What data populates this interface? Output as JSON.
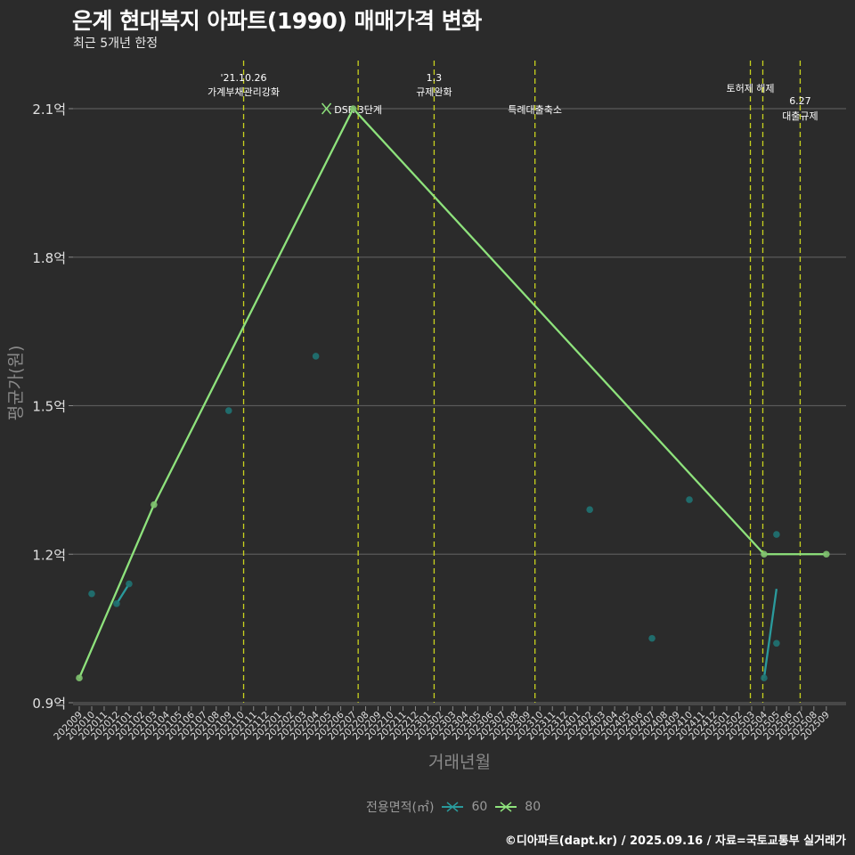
{
  "title": "은계 현대복지 아파트(1990) 매매가격 변화",
  "subtitle": "최근 5개년 한정",
  "caption": "©디아파트(dapt.kr) / 2025.09.16 / 자료=국토교통부 실거래가",
  "colors": {
    "background": "#2b2b2b",
    "series60": "#2a9a9c",
    "series80": "#8ee27c",
    "event_line": "#c8d21e",
    "grid": "#5a5a5a"
  },
  "chart_data": {
    "type": "line",
    "title": "은계 현대복지 아파트(1990) 매매가격 변화",
    "xlabel": "거래년월",
    "ylabel": "평균가(원)",
    "ylim": [
      0.9,
      2.1
    ],
    "yticks": [
      0.9,
      1.2,
      1.5,
      1.8,
      2.1
    ],
    "ytick_labels": [
      "0.9억",
      "1.2억",
      "1.5억",
      "1.8억",
      "2.1억"
    ],
    "categories": [
      "202009",
      "202010",
      "202011",
      "202012",
      "202101",
      "202102",
      "202103",
      "202104",
      "202105",
      "202106",
      "202107",
      "202108",
      "202109",
      "202110",
      "202111",
      "202112",
      "202201",
      "202202",
      "202203",
      "202204",
      "202205",
      "202206",
      "202207",
      "202208",
      "202209",
      "202210",
      "202211",
      "202212",
      "202301",
      "202302",
      "202303",
      "202304",
      "202305",
      "202306",
      "202307",
      "202308",
      "202309",
      "202310",
      "202311",
      "202312",
      "202401",
      "202402",
      "202403",
      "202404",
      "202405",
      "202406",
      "202407",
      "202408",
      "202409",
      "202410",
      "202411",
      "202412",
      "202501",
      "202502",
      "202503",
      "202504",
      "202505",
      "202506",
      "202507",
      "202508",
      "202509"
    ],
    "legend_title": "전용면적(㎡)",
    "legend_position": "bottom",
    "grid": true,
    "series": [
      {
        "name": "60",
        "line": [
          {
            "x": "202012",
            "y": 1.1
          },
          {
            "x": "202101",
            "y": 1.14
          },
          null,
          {
            "x": "202504",
            "y": 0.95
          },
          {
            "x": "202505",
            "y": 1.13
          }
        ],
        "points": [
          {
            "x": "202010",
            "y": 1.12
          },
          {
            "x": "202012",
            "y": 1.1
          },
          {
            "x": "202101",
            "y": 1.14
          },
          {
            "x": "202109",
            "y": 1.49
          },
          {
            "x": "202204",
            "y": 1.6
          },
          {
            "x": "202402",
            "y": 1.29
          },
          {
            "x": "202407",
            "y": 1.03
          },
          {
            "x": "202410",
            "y": 1.31
          },
          {
            "x": "202504",
            "y": 0.95
          },
          {
            "x": "202505",
            "y": 1.24
          },
          {
            "x": "202505",
            "y": 1.02
          }
        ]
      },
      {
        "name": "80",
        "line": [
          {
            "x": "202009",
            "y": 0.95
          },
          {
            "x": "202103",
            "y": 1.3
          },
          {
            "x": "202207",
            "y": 2.1
          },
          {
            "x": "202504",
            "y": 1.2
          },
          {
            "x": "202509",
            "y": 1.2
          }
        ],
        "points": [
          {
            "x": "202009",
            "y": 0.95
          },
          {
            "x": "202103",
            "y": 1.3
          },
          {
            "x": "202207",
            "y": 2.1
          },
          {
            "x": "202504",
            "y": 1.2
          },
          {
            "x": "202509",
            "y": 1.2
          }
        ]
      }
    ],
    "events": [
      {
        "month_index": 13.2,
        "label": [
          "'21.10.26",
          "가계부채관리강화"
        ],
        "level": "high"
      },
      {
        "month_index": 22.4,
        "label": [
          "DSR 3단계"
        ],
        "level": "low"
      },
      {
        "month_index": 28.5,
        "label": [
          "1.3",
          "규제완화"
        ],
        "level": "high"
      },
      {
        "month_index": 36.6,
        "label": [
          "특례대출축소"
        ],
        "level": "low"
      },
      {
        "month_index": 53.9,
        "label": [
          "토허제 해제"
        ],
        "level": "mid"
      },
      {
        "month_index": 54.9,
        "label": [],
        "level": "none"
      },
      {
        "month_index": 57.9,
        "label": [
          "6.27",
          "대출규제"
        ],
        "level": "lower"
      }
    ]
  }
}
